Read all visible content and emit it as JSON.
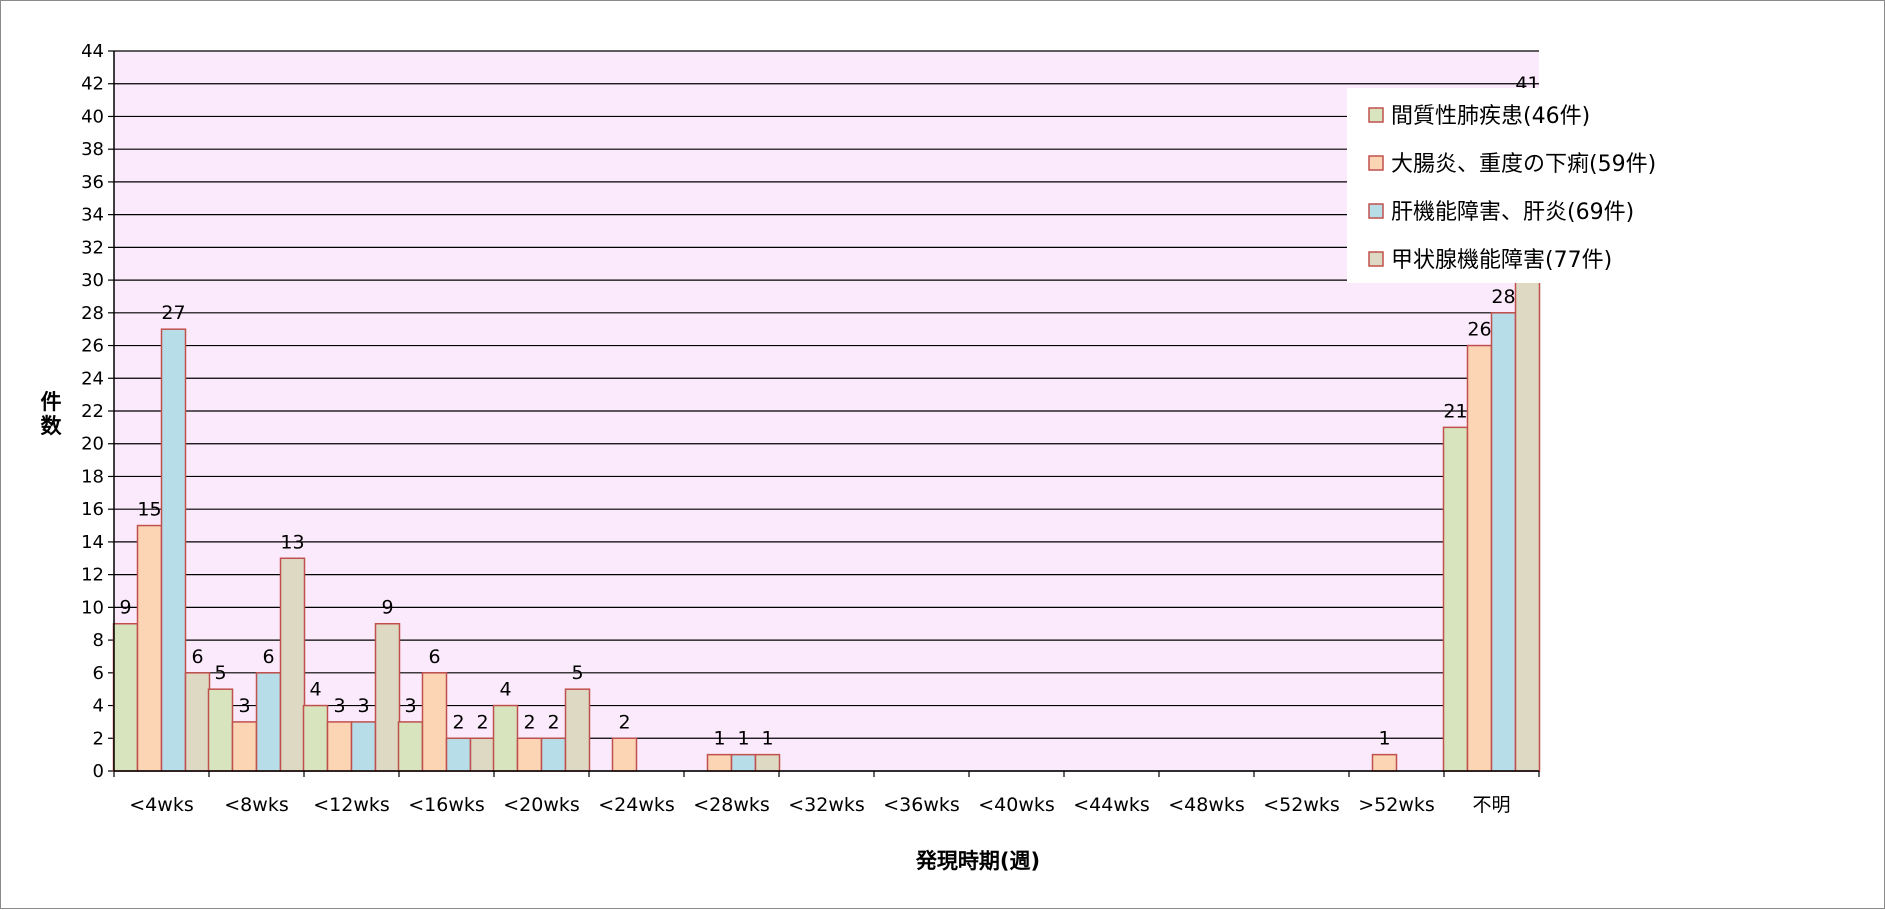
{
  "chart_data": {
    "type": "bar",
    "title": "",
    "xlabel": "発現時期(週)",
    "ylabel": "件数",
    "ylim": [
      0,
      44
    ],
    "ytick_step": 2,
    "grid": true,
    "legend_position": "top-right",
    "categories": [
      "<4wks",
      "<8wks",
      "<12wks",
      "<16wks",
      "<20wks",
      "<24wks",
      "<28wks",
      "<32wks",
      "<36wks",
      "<40wks",
      "<44wks",
      "<48wks",
      "<52wks",
      ">52wks",
      "不明"
    ],
    "series": [
      {
        "name": "間質性肺疾患(46件)",
        "color": "#d7e4bd",
        "values": [
          9,
          5,
          4,
          3,
          4,
          0,
          0,
          0,
          0,
          0,
          0,
          0,
          0,
          0,
          21
        ]
      },
      {
        "name": "大腸炎、重度の下痢(59件)",
        "color": "#fcd5b5",
        "values": [
          15,
          3,
          3,
          6,
          2,
          2,
          1,
          0,
          0,
          0,
          0,
          0,
          0,
          1,
          26
        ]
      },
      {
        "name": "肝機能障害、肝炎(69件)",
        "color": "#b7dee8",
        "values": [
          27,
          6,
          3,
          2,
          2,
          0,
          1,
          0,
          0,
          0,
          0,
          0,
          0,
          0,
          28
        ]
      },
      {
        "name": "甲状腺機能障害(77件)",
        "color": "#ddd9c3",
        "values": [
          6,
          13,
          9,
          2,
          5,
          0,
          1,
          0,
          0,
          0,
          0,
          0,
          0,
          0,
          41
        ]
      }
    ],
    "bar_edge_color": "#c0504d",
    "plot_background": "#fbeafb"
  }
}
